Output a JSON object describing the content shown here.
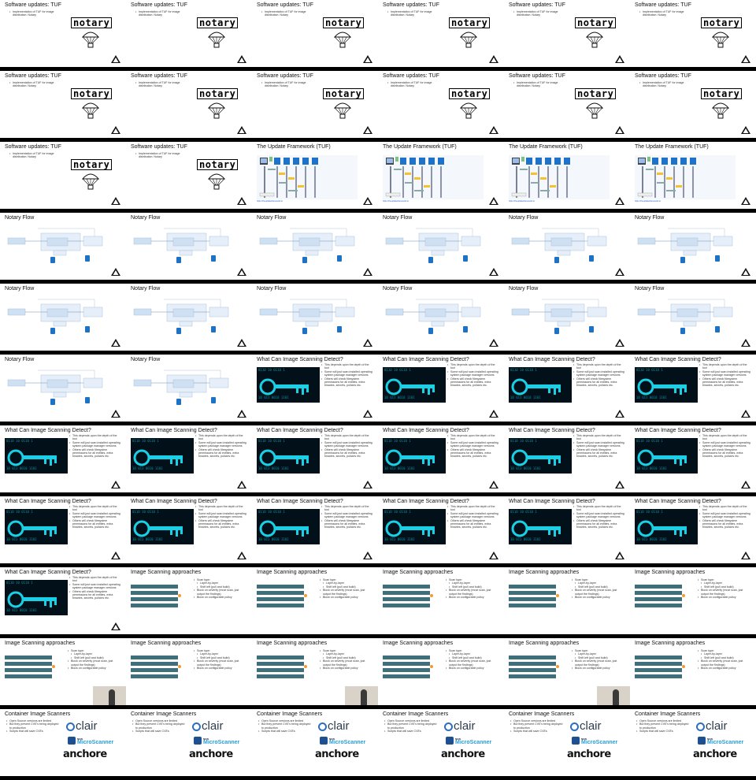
{
  "grid": {
    "columns": 6,
    "rows": 11
  },
  "colors": {
    "background": "#000000",
    "slide": "#ffffff",
    "accent_blue": "#2a9fd6",
    "diagram_blue": "#cfe0f3",
    "key_cyan": "#19d0e6",
    "scan_row": "#3e6f7a"
  },
  "slides": [
    {
      "type": "notary",
      "title": "Software updates: TUF"
    },
    {
      "type": "notary",
      "title": "Software updates: TUF"
    },
    {
      "type": "notary",
      "title": "Software updates: TUF"
    },
    {
      "type": "notary",
      "title": "Software updates: TUF"
    },
    {
      "type": "notary",
      "title": "Software updates: TUF"
    },
    {
      "type": "notary",
      "title": "Software updates: TUF"
    },
    {
      "type": "notary",
      "title": "Software updates: TUF"
    },
    {
      "type": "notary",
      "title": "Software updates: TUF"
    },
    {
      "type": "notary",
      "title": "Software updates: TUF"
    },
    {
      "type": "notary",
      "title": "Software updates: TUF"
    },
    {
      "type": "notary",
      "title": "Software updates: TUF"
    },
    {
      "type": "notary",
      "title": "Software updates: TUF"
    },
    {
      "type": "notary",
      "title": "Software updates: TUF"
    },
    {
      "type": "notary",
      "title": "Software updates: TUF"
    },
    {
      "type": "tuf",
      "title": "The Update Framework (TUF)"
    },
    {
      "type": "tuf",
      "title": "The Update Framework (TUF)"
    },
    {
      "type": "tuf",
      "title": "The Update Framework (TUF)"
    },
    {
      "type": "tuf",
      "title": "The Update Framework (TUF)"
    },
    {
      "type": "flow",
      "title": "Notary Flow"
    },
    {
      "type": "flow",
      "title": "Notary Flow"
    },
    {
      "type": "flow",
      "title": "Notary Flow"
    },
    {
      "type": "flow",
      "title": "Notary Flow"
    },
    {
      "type": "flow",
      "title": "Notary Flow"
    },
    {
      "type": "flow",
      "title": "Notary Flow"
    },
    {
      "type": "flow",
      "title": "Notary Flow"
    },
    {
      "type": "flow",
      "title": "Notary Flow"
    },
    {
      "type": "flow",
      "title": "Notary Flow"
    },
    {
      "type": "flow",
      "title": "Notary Flow"
    },
    {
      "type": "flow",
      "title": "Notary Flow"
    },
    {
      "type": "flow",
      "title": "Notary Flow"
    },
    {
      "type": "flow",
      "title": "Notary Flow"
    },
    {
      "type": "flow",
      "title": "Notary Flow"
    },
    {
      "type": "detect",
      "title": "What Can Image Scanning Detect?"
    },
    {
      "type": "detect",
      "title": "What Can Image Scanning Detect?"
    },
    {
      "type": "detect",
      "title": "What Can Image Scanning Detect?"
    },
    {
      "type": "detect",
      "title": "What Can Image Scanning Detect?"
    },
    {
      "type": "detect",
      "title": "What Can Image Scanning Detect?"
    },
    {
      "type": "detect",
      "title": "What Can Image Scanning Detect?"
    },
    {
      "type": "detect",
      "title": "What Can Image Scanning Detect?"
    },
    {
      "type": "detect",
      "title": "What Can Image Scanning Detect?"
    },
    {
      "type": "detect",
      "title": "What Can Image Scanning Detect?"
    },
    {
      "type": "detect",
      "title": "What Can Image Scanning Detect?"
    },
    {
      "type": "detect",
      "title": "What Can Image Scanning Detect?"
    },
    {
      "type": "detect",
      "title": "What Can Image Scanning Detect?"
    },
    {
      "type": "detect",
      "title": "What Can Image Scanning Detect?"
    },
    {
      "type": "detect",
      "title": "What Can Image Scanning Detect?"
    },
    {
      "type": "detect",
      "title": "What Can Image Scanning Detect?"
    },
    {
      "type": "detect",
      "title": "What Can Image Scanning Detect?"
    },
    {
      "type": "detect",
      "title": "What Can Image Scanning Detect?"
    },
    {
      "type": "scan",
      "title": "Image Scanning approaches"
    },
    {
      "type": "scan",
      "title": "Image Scanning approaches"
    },
    {
      "type": "scan",
      "title": "Image Scanning approaches"
    },
    {
      "type": "scan",
      "title": "Image Scanning approaches"
    },
    {
      "type": "scan",
      "title": "Image Scanning approaches"
    },
    {
      "type": "scan",
      "title": "Image Scanning approaches"
    },
    {
      "type": "scan",
      "title": "Image Scanning approaches"
    },
    {
      "type": "scan",
      "title": "Image Scanning approaches"
    },
    {
      "type": "scan",
      "title": "Image Scanning approaches"
    },
    {
      "type": "scan",
      "title": "Image Scanning approaches"
    },
    {
      "type": "scan",
      "title": "Image Scanning approaches"
    },
    {
      "type": "scanners",
      "title": "Container Image Scanners"
    },
    {
      "type": "scanners",
      "title": "Container Image Scanners"
    },
    {
      "type": "scanners",
      "title": "Container Image Scanners"
    },
    {
      "type": "scanners",
      "title": "Container Image Scanners"
    },
    {
      "type": "scanners",
      "title": "Container Image Scanners"
    },
    {
      "type": "scanners",
      "title": "Container Image Scanners"
    }
  ],
  "text": {
    "tuf_bullets": [
      "Implementation of TUF for image distribution: Notary"
    ],
    "notary_logo": "notary",
    "tuf_link": "https://theupdateframework.io",
    "detect_bullets": [
      "This depends upon the depth of the tool",
      "Some will just scan installed operating system package manager versions",
      "Others will check filesystem permissions for all entities, extra binaries, secrets, policies etc."
    ],
    "scan_bullets": [
      "Scan type:",
      "Layer-by-layer",
      "Shift left (pull and build)",
      "Block on severity (must scan, just output the findings)",
      "Block on configurable policy"
    ],
    "scanners_bullets": [
      "Open Source versions are limited",
      "But they prevent CVE's being deployed to production",
      "Scripts that will save CVEs"
    ],
    "clair": "clair",
    "ms_line1": "NEW",
    "ms_line2": "MicroScanner",
    "anchore": "anchore"
  }
}
